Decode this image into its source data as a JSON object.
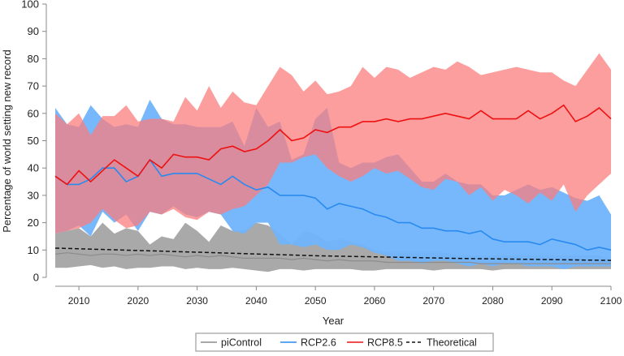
{
  "chart_data": {
    "type": "area",
    "xlabel": "Year",
    "ylabel": "Percentage of world setting new record",
    "xlim": [
      2006,
      2100
    ],
    "ylim": [
      0,
      100
    ],
    "xticks": [
      2010,
      2020,
      2030,
      2040,
      2050,
      2060,
      2070,
      2080,
      2090,
      2100
    ],
    "yticks": [
      0,
      10,
      20,
      30,
      40,
      50,
      60,
      70,
      80,
      90,
      100
    ],
    "grid": false,
    "legend_placement": "bottom",
    "x": [
      2006,
      2008,
      2010,
      2012,
      2014,
      2016,
      2018,
      2020,
      2022,
      2024,
      2026,
      2028,
      2030,
      2032,
      2034,
      2036,
      2038,
      2040,
      2042,
      2044,
      2046,
      2048,
      2050,
      2052,
      2054,
      2056,
      2058,
      2060,
      2062,
      2064,
      2066,
      2068,
      2070,
      2072,
      2074,
      2076,
      2078,
      2080,
      2082,
      2084,
      2086,
      2088,
      2090,
      2092,
      2094,
      2096,
      2098,
      2100
    ],
    "series": [
      {
        "name": "piControl",
        "color": "#8c8c8c",
        "band_color": "#a9a9a9",
        "mean": [
          8.5,
          9,
          8.5,
          8,
          8.5,
          8.5,
          8,
          8.5,
          8,
          8.5,
          8,
          7.5,
          8,
          7.5,
          8,
          7.5,
          7,
          7,
          7,
          7,
          6.5,
          7,
          6.5,
          6,
          6.5,
          6,
          6,
          6,
          5.5,
          5.5,
          5.5,
          5.5,
          5.5,
          5.5,
          5.5,
          5.5,
          5,
          5,
          5,
          5,
          5,
          5,
          5,
          5,
          5,
          5,
          5,
          5
        ],
        "upper": [
          16,
          17,
          18,
          15,
          20,
          16,
          18,
          17,
          12,
          15,
          14,
          20,
          17,
          13,
          19,
          17,
          17,
          20,
          19,
          16,
          12,
          17,
          16,
          13,
          14,
          13,
          12,
          10,
          9,
          9,
          9,
          9,
          9,
          9,
          8,
          8,
          8,
          8,
          8,
          8,
          8,
          8,
          8,
          8,
          8,
          8,
          8,
          7
        ],
        "lower": [
          3.5,
          3.5,
          4,
          4.5,
          3.5,
          4,
          3,
          3.5,
          3.5,
          4,
          4,
          3,
          3.5,
          3,
          3,
          3.5,
          3,
          2.5,
          2,
          3,
          3,
          2.5,
          3,
          3,
          3,
          3,
          2.5,
          2.5,
          3,
          3,
          3,
          3,
          2.5,
          3,
          3,
          3,
          3,
          2.5,
          3,
          3,
          3,
          3,
          3,
          3,
          3,
          3,
          3,
          3
        ]
      },
      {
        "name": "RCP2.6",
        "color": "#2a8af0",
        "band_color": "#6fb4fb",
        "mean": [
          37,
          34,
          34,
          36,
          40,
          40,
          35,
          37,
          43,
          37,
          38,
          38,
          38,
          36,
          34,
          37,
          34,
          32,
          33,
          30,
          30,
          30,
          29,
          25,
          27,
          26,
          25,
          23,
          22,
          20,
          20,
          18,
          18,
          17,
          17,
          16,
          17,
          14,
          13,
          13,
          13,
          12,
          14,
          13,
          12,
          10,
          11,
          10
        ],
        "upper": [
          62,
          56,
          55,
          63,
          58,
          55,
          56,
          55,
          65,
          58,
          56,
          56,
          55,
          55,
          55,
          57,
          48,
          62,
          55,
          57,
          43,
          45,
          58,
          62,
          42,
          40,
          42,
          42,
          44,
          45,
          40,
          35,
          35,
          38,
          35,
          34,
          34,
          30,
          30,
          32,
          34,
          32,
          33,
          31,
          29,
          28,
          30,
          23
        ],
        "lower": [
          16,
          17,
          19,
          15,
          24,
          20,
          23,
          17,
          24,
          23,
          26,
          23,
          22,
          24,
          23,
          17,
          16,
          20,
          20,
          12,
          12,
          11,
          12,
          10,
          10,
          12,
          11,
          9,
          8,
          6,
          6,
          5,
          6,
          6,
          5,
          4,
          5,
          4,
          5,
          5,
          4,
          4,
          4,
          3,
          4,
          4,
          4,
          4
        ]
      },
      {
        "name": "RCP8.5",
        "color": "#ee1111",
        "band_color": "#fb7e7e",
        "mean": [
          37,
          34,
          39,
          35,
          39,
          43,
          40,
          37,
          43,
          40,
          45,
          44,
          44,
          43,
          47,
          48,
          46,
          47,
          50,
          54,
          50,
          51,
          54,
          53,
          55,
          55,
          57,
          57,
          58,
          57,
          58,
          58,
          59,
          60,
          59,
          58,
          61,
          58,
          58,
          58,
          61,
          58,
          60,
          63,
          57,
          59,
          62,
          58
        ],
        "upper": [
          60,
          56,
          60,
          52,
          59,
          59,
          63,
          57,
          58,
          58,
          57,
          66,
          61,
          70,
          62,
          68,
          64,
          63,
          70,
          77,
          74,
          68,
          72,
          67,
          68,
          70,
          77,
          73,
          77,
          76,
          73,
          75,
          77,
          76,
          79,
          77,
          74,
          75,
          76,
          77,
          76,
          75,
          75,
          72,
          70,
          76,
          82,
          76
        ],
        "lower": [
          16,
          17,
          18,
          20,
          25,
          21,
          18,
          19,
          24,
          23,
          25,
          22,
          21,
          24,
          23,
          25,
          26,
          30,
          34,
          42,
          42,
          44,
          45,
          40,
          37,
          35,
          37,
          40,
          38,
          39,
          36,
          33,
          32,
          36,
          35,
          30,
          33,
          28,
          32,
          30,
          27,
          31,
          28,
          34,
          24,
          30,
          34,
          38
        ]
      }
    ],
    "theoretical": {
      "name": "Theoretical",
      "color": "#111111",
      "x": [
        2006,
        2030,
        2050,
        2075,
        2100
      ],
      "values": [
        10.7,
        9.2,
        7.9,
        6.9,
        6.2
      ]
    }
  }
}
